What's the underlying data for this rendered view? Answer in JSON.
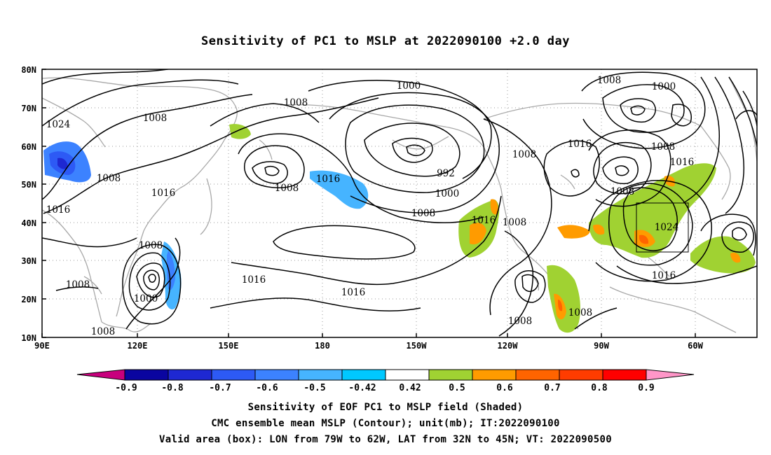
{
  "title": "Sensitivity of PC1 to MSLP at 2022090100 +2.0 day",
  "axes": {
    "lat_ticks": [
      "80N",
      "70N",
      "60N",
      "50N",
      "40N",
      "30N",
      "20N",
      "10N"
    ],
    "lon_ticks": [
      "90E",
      "120E",
      "150E",
      "180",
      "150W",
      "120W",
      "90W",
      "60W"
    ]
  },
  "contour_labels": [
    "1000",
    "1024",
    "1008",
    "1008",
    "1008",
    "1016",
    "1016",
    "1008",
    "1016",
    "1008",
    "1008",
    "1000",
    "1016",
    "1016",
    "1008",
    "1008",
    "1000",
    "992",
    "1000",
    "1008",
    "1016",
    "1008",
    "1008",
    "1016",
    "1008",
    "1008",
    "1000",
    "1008",
    "1016",
    "1008",
    "1024",
    "1016"
  ],
  "colorbar": {
    "ticks": [
      "-0.9",
      "-0.8",
      "-0.7",
      "-0.6",
      "-0.5",
      "-0.42",
      "0.42",
      "0.5",
      "0.6",
      "0.7",
      "0.8",
      "0.9"
    ],
    "colors": [
      "#c8007d",
      "#0a05a0",
      "#1e28d2",
      "#2d5af5",
      "#3c82ff",
      "#46b4ff",
      "#00c8ff",
      "#ffffff",
      "#a0d232",
      "#ff9b00",
      "#ff6400",
      "#ff3c00",
      "#ff0000",
      "#ff96c8"
    ]
  },
  "captions": [
    "Sensitivity of EOF PC1 to MSLP field (Shaded)",
    "CMC ensemble mean MSLP (Contour); unit(mb); IT:2022090100",
    "Valid area (box): LON from 79W to 62W, LAT from 32N to 45N; VT: 2022090500"
  ]
}
